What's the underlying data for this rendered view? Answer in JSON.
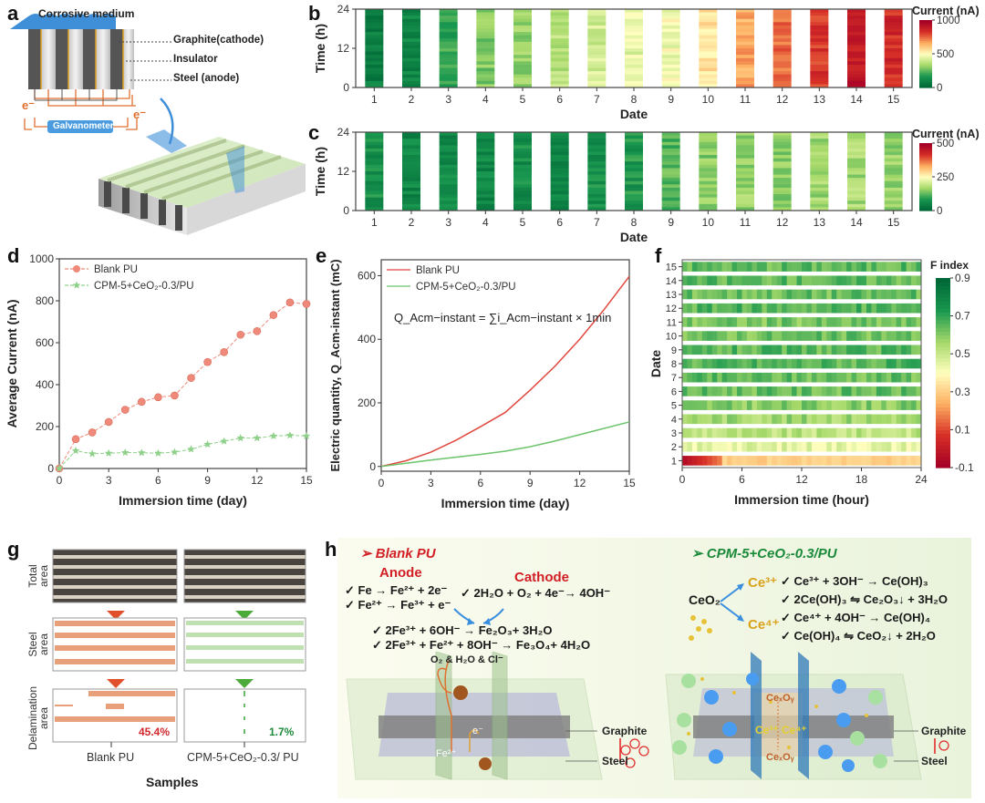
{
  "panel_labels": {
    "a": "a",
    "b": "b",
    "c": "c",
    "d": "d",
    "e": "e",
    "f": "f",
    "g": "g",
    "h": "h"
  },
  "panel_a": {
    "top_label": "Corrosive medium",
    "labels": [
      "Graphite(cathode)",
      "Insulator",
      "Steel (anode)"
    ],
    "electron": "e⁻",
    "galvanometer": "Galvanometer"
  },
  "chart_data": [
    {
      "id": "b",
      "type": "heatmap",
      "xlabel": "Date",
      "ylabel": "Time (h)",
      "x_ticks": [
        "1",
        "2",
        "3",
        "4",
        "5",
        "6",
        "7",
        "8",
        "9",
        "10",
        "11",
        "12",
        "13",
        "14",
        "15"
      ],
      "y_ticks": [
        "0",
        "12",
        "24"
      ],
      "ylim": [
        0,
        24
      ],
      "colorbar": {
        "title": "Current (nA)",
        "ticks": [
          "0",
          "500",
          "1000"
        ],
        "range": [
          0,
          1000
        ],
        "colors": [
          "#006837",
          "#1a9850",
          "#a6d96a",
          "#ffffbf",
          "#fdae61",
          "#d73027",
          "#a50026"
        ]
      },
      "approx_mean_values_by_date": [
        80,
        100,
        200,
        290,
        320,
        380,
        420,
        450,
        480,
        560,
        670,
        750,
        830,
        920,
        860
      ]
    },
    {
      "id": "c",
      "type": "heatmap",
      "xlabel": "Date",
      "ylabel": "Time (h)",
      "x_ticks": [
        "1",
        "2",
        "3",
        "4",
        "5",
        "6",
        "7",
        "8",
        "9",
        "10",
        "11",
        "12",
        "13",
        "14",
        "15"
      ],
      "y_ticks": [
        "0",
        "12",
        "24"
      ],
      "ylim": [
        0,
        24
      ],
      "colorbar": {
        "title": "Current (nA)",
        "ticks": [
          "0",
          "250",
          "500"
        ],
        "range": [
          0,
          500
        ],
        "colors": [
          "#006837",
          "#1a9850",
          "#a6d96a",
          "#ffffbf",
          "#fdae61",
          "#d73027",
          "#a50026"
        ]
      },
      "approx_mean_values_by_date": [
        70,
        55,
        60,
        55,
        65,
        55,
        70,
        80,
        120,
        150,
        160,
        150,
        165,
        170,
        160
      ]
    },
    {
      "id": "d",
      "type": "line",
      "xlabel": "Immersion time (day)",
      "ylabel": "Average Current (nA)",
      "xlim": [
        0,
        15
      ],
      "ylim": [
        0,
        1000
      ],
      "x_ticks": [
        "0",
        "3",
        "6",
        "9",
        "12",
        "15"
      ],
      "y_ticks": [
        "0",
        "200",
        "400",
        "600",
        "800",
        "1000"
      ],
      "legend_position": "top-left",
      "x": [
        0,
        1,
        2,
        3,
        4,
        5,
        6,
        7,
        8,
        9,
        10,
        11,
        12,
        13,
        14,
        15
      ],
      "series": [
        {
          "name": "Blank PU",
          "marker": "circle",
          "color": "#ef8a7a",
          "values": [
            0,
            140,
            172,
            222,
            280,
            318,
            340,
            348,
            432,
            508,
            555,
            638,
            655,
            732,
            792,
            785
          ]
        },
        {
          "name": "CPM-5+CeO₂-0.3/PU",
          "marker": "star",
          "color": "#8fd18a",
          "values": [
            0,
            85,
            70,
            73,
            76,
            75,
            73,
            78,
            92,
            115,
            130,
            145,
            145,
            155,
            158,
            155
          ]
        }
      ]
    },
    {
      "id": "e",
      "type": "line",
      "xlabel": "Immersion time (day)",
      "ylabel": "Electric quantity, Q_Acm-instant (mC)",
      "xlim": [
        0,
        15
      ],
      "ylim": [
        -15,
        650
      ],
      "x_ticks": [
        "0",
        "3",
        "6",
        "9",
        "12",
        "15"
      ],
      "y_ticks": [
        "0",
        "200",
        "400",
        "600"
      ],
      "legend_position": "top-left",
      "annotation": "Q_Acm−instant = ∑i_Acm−instant × 1min",
      "x": [
        0,
        1.5,
        3,
        4.5,
        6,
        7.5,
        9,
        10.5,
        12,
        13.5,
        15
      ],
      "series": [
        {
          "name": "Blank PU",
          "color": "#e0483e",
          "values": [
            0,
            18,
            45,
            82,
            125,
            170,
            240,
            315,
            400,
            495,
            598
          ]
        },
        {
          "name": "CPM-5+CeO₂-0.3/PU",
          "color": "#6cc46c",
          "values": [
            0,
            10,
            20,
            29,
            38,
            48,
            62,
            80,
            100,
            120,
            140
          ]
        }
      ]
    },
    {
      "id": "f",
      "type": "heatmap",
      "xlabel": "Immersion time (hour)",
      "ylabel": "Date",
      "xlim": [
        0,
        24
      ],
      "x_ticks": [
        "0",
        "6",
        "12",
        "18",
        "24"
      ],
      "y_ticks": [
        "1",
        "2",
        "3",
        "4",
        "5",
        "6",
        "7",
        "8",
        "9",
        "10",
        "11",
        "12",
        "13",
        "14",
        "15"
      ],
      "colorbar": {
        "title": "F index",
        "ticks": [
          "-0.1",
          "0.1",
          "0.3",
          "0.5",
          "0.7",
          "0.9"
        ],
        "range": [
          -0.1,
          0.9
        ],
        "colors": [
          "#a50026",
          "#d73027",
          "#fdae61",
          "#ffffbf",
          "#a6d96a",
          "#1a9850",
          "#006837"
        ]
      },
      "approx_mean_values_by_date": [
        0.3,
        0.45,
        0.52,
        0.57,
        0.6,
        0.64,
        0.64,
        0.66,
        0.65,
        0.63,
        0.62,
        0.66,
        0.64,
        0.65,
        0.65
      ]
    },
    {
      "id": "g",
      "type": "table",
      "xlabel": "Samples",
      "row_labels": [
        "Total area",
        "Steel area",
        "Delamination area"
      ],
      "columns": [
        "Blank PU",
        "CPM-5+CeO₂-0.3/ PU"
      ],
      "delamination_percent": [
        "45.4%",
        "1.7%"
      ],
      "colors": {
        "blank": "#d2282e",
        "cpm": "#1f8a3c"
      }
    }
  ],
  "panel_h": {
    "left_title": "➢ Blank PU",
    "anode_title": "Anode",
    "cathode_title": "Cathode",
    "anode_eqs": [
      "✓ Fe → Fe²⁺ + 2e⁻",
      "✓ Fe²⁺ → Fe³⁺ + e⁻"
    ],
    "cathode_eq": "✓ 2H₂O + O₂ + 4e⁻→ 4OH⁻",
    "product_eqs": [
      "✓ 2Fe³⁺ + 6OH⁻ → Fe₂O₃+ 3H₂O",
      "✓ 2Fe³⁺ + Fe²⁺ + 8OH⁻ → Fe₃O₄+ 4H₂O"
    ],
    "right_title": "➢ CPM-5+CeO₂-0.3/PU",
    "ceo2": "CeO₂",
    "ce3": "Ce³⁺",
    "ce4": "Ce⁴⁺",
    "ce_eqs": [
      "✓ Ce³⁺ + 3OH⁻ → Ce(OH)₃",
      "✓ 2Ce(OH)₃ ⇋ Ce₂O₃↓ + 3H₂O",
      "✓ Ce⁴⁺ + 4OH⁻ → Ce(OH)₄",
      "✓ Ce(OH)₄ ⇋ CeO₂↓ + 2H₂O"
    ],
    "left_diagram": {
      "species": "O₂ & H₂O & Cl⁻",
      "fe": "Fe²⁺",
      "e": "e⁻",
      "graphite": "Graphite",
      "steel": "Steel"
    },
    "right_diagram": {
      "cexoy": "CeₓOᵧ",
      "ce_pair": "Ce³⁺ Ce⁴⁺",
      "graphite": "Graphite",
      "steel": "Steel"
    }
  }
}
